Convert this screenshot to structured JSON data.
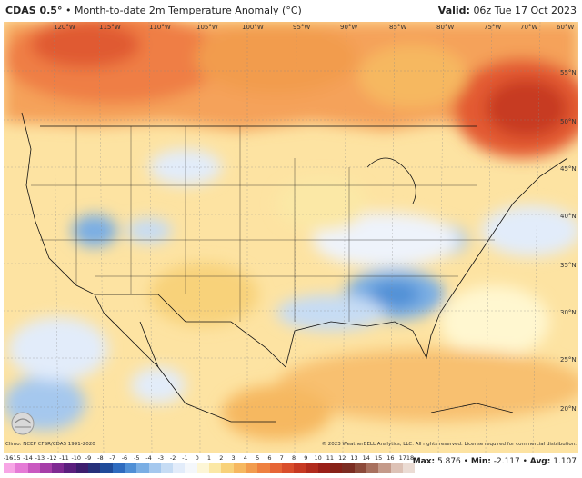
{
  "header": {
    "model": "CDAS 0.5°",
    "title_rest": " • Month-to-date 2m Temperature Anomaly (°C)",
    "valid_label": "Valid:",
    "valid_time": "06z Tue 17 Oct 2023"
  },
  "map": {
    "lon_labels": [
      "120°W",
      "115°W",
      "110°W",
      "105°W",
      "100°W",
      "95°W",
      "90°W",
      "85°W",
      "80°W",
      "75°W",
      "70°W",
      "60°W"
    ],
    "lat_labels": [
      "55°N",
      "50°N",
      "45°N",
      "40°N",
      "35°N",
      "30°N",
      "25°N",
      "20°N"
    ]
  },
  "footer": {
    "source": "Climo: NCEP CFSR/CDAS 1991-2020",
    "copyright": "© 2023 WeatherBELL Analytics, LLC. All rights reserved. License required for commercial distribution."
  },
  "colorbar": {
    "ticks": [
      "-16",
      "-15",
      "-14",
      "-13",
      "-12",
      "-11",
      "-10",
      "-9",
      "-8",
      "-7",
      "-6",
      "-5",
      "-4",
      "-3",
      "-2",
      "-1",
      "0",
      "1",
      "2",
      "3",
      "4",
      "5",
      "6",
      "7",
      "8",
      "9",
      "10",
      "11",
      "12",
      "13",
      "14",
      "15",
      "16",
      "17",
      "18"
    ],
    "colors": [
      "#f7a6e6",
      "#e57bd6",
      "#c959c0",
      "#a63ea8",
      "#7f2a92",
      "#5b1f7e",
      "#3d1d6e",
      "#26307a",
      "#1f4b9a",
      "#2e6bbf",
      "#4f8fd6",
      "#7aaee4",
      "#a5c8ee",
      "#c6dcf4",
      "#e2ecfa",
      "#f4f7fb",
      "#fdf6d6",
      "#fbe8a6",
      "#f8d27a",
      "#f6b860",
      "#f29c4e",
      "#ee8040",
      "#e66536",
      "#d94e2c",
      "#c73a23",
      "#b12b1d",
      "#9a1f18",
      "#872218",
      "#7b2d22",
      "#8c4a3a",
      "#a8705e",
      "#c49a8a",
      "#ddc2b6",
      "#ebdcd4"
    ]
  },
  "stats": {
    "max_label": "Max:",
    "max_value": "5.876",
    "min_label": "Min:",
    "min_value": "-2.117",
    "avg_label": "Avg:",
    "avg_value": "1.107"
  },
  "colors": {
    "strong_warm": "#e04a2a",
    "warm": "#f5a25a",
    "mild_warm": "#fbd98a",
    "neutral": "#fff7d0",
    "cool": "#dde9f7",
    "cold": "#7fb0e6"
  }
}
